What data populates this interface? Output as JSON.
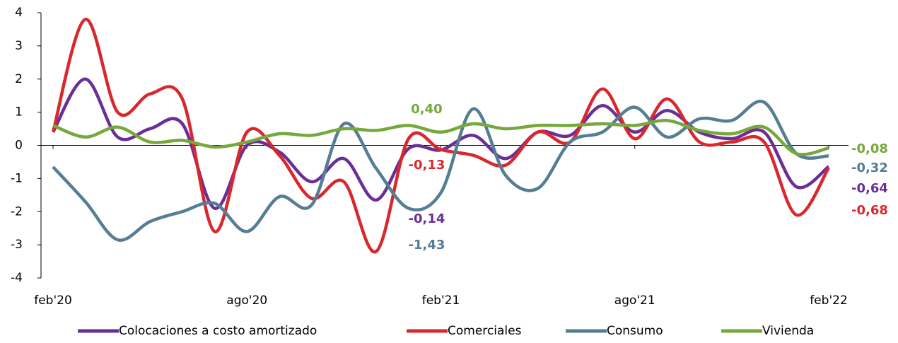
{
  "chart_data": {
    "type": "line",
    "categories": [
      "feb'20",
      null,
      null,
      null,
      null,
      null,
      "ago'20",
      null,
      null,
      null,
      null,
      null,
      "feb'21",
      null,
      null,
      null,
      null,
      null,
      "ago'21",
      null,
      null,
      null,
      null,
      null,
      "feb'22"
    ],
    "series": [
      {
        "name": "Colocaciones a costo amortizado",
        "color": "#6b2e96",
        "values": [
          0.4,
          2.0,
          0.25,
          0.5,
          0.65,
          -1.9,
          0.0,
          -0.2,
          -1.1,
          -0.4,
          -1.65,
          -0.1,
          -0.14,
          0.3,
          -0.4,
          0.4,
          0.3,
          1.2,
          0.4,
          1.05,
          0.4,
          0.2,
          0.4,
          -1.25,
          -0.64
        ],
        "value_labels": [
          null,
          null,
          null,
          null,
          null,
          null,
          null,
          null,
          null,
          null,
          null,
          null,
          "-0,14",
          null,
          null,
          null,
          null,
          null,
          null,
          null,
          null,
          null,
          null,
          null,
          "-0,64"
        ]
      },
      {
        "name": "Comerciales",
        "color": "#d8282e",
        "values": [
          0.4,
          3.8,
          1.0,
          1.55,
          1.4,
          -2.6,
          0.4,
          -0.3,
          -1.6,
          -1.1,
          -3.2,
          0.2,
          -0.13,
          -0.3,
          -0.6,
          0.4,
          0.1,
          1.7,
          0.2,
          1.4,
          0.1,
          0.1,
          0.1,
          -2.1,
          -0.68
        ],
        "value_labels": [
          null,
          null,
          null,
          null,
          null,
          null,
          null,
          null,
          null,
          null,
          null,
          null,
          "-0,13",
          null,
          null,
          null,
          null,
          null,
          null,
          null,
          null,
          null,
          null,
          null,
          "-0,68"
        ]
      },
      {
        "name": "Consumo",
        "color": "#557d93",
        "values": [
          -0.65,
          -1.7,
          -2.85,
          -2.3,
          -2.0,
          -1.75,
          -2.6,
          -1.55,
          -1.8,
          0.65,
          -0.7,
          -1.9,
          -1.43,
          1.1,
          -0.9,
          -1.3,
          0.1,
          0.4,
          1.15,
          0.25,
          0.8,
          0.75,
          1.3,
          -0.25,
          -0.32
        ],
        "value_labels": [
          null,
          null,
          null,
          null,
          null,
          null,
          null,
          null,
          null,
          null,
          null,
          null,
          "-1,43",
          null,
          null,
          null,
          null,
          null,
          null,
          null,
          null,
          null,
          null,
          null,
          "-0,32"
        ]
      },
      {
        "name": "Vivienda",
        "color": "#76a83b",
        "values": [
          0.6,
          0.25,
          0.55,
          0.1,
          0.15,
          -0.05,
          0.1,
          0.35,
          0.3,
          0.5,
          0.45,
          0.6,
          0.4,
          0.65,
          0.5,
          0.6,
          0.6,
          0.65,
          0.6,
          0.75,
          0.45,
          0.35,
          0.55,
          -0.25,
          -0.08
        ],
        "value_labels": [
          null,
          null,
          null,
          null,
          null,
          null,
          null,
          null,
          null,
          null,
          null,
          null,
          "0,40",
          null,
          null,
          null,
          null,
          null,
          null,
          null,
          null,
          null,
          null,
          null,
          "-0,08"
        ]
      }
    ],
    "ylim": [
      -4,
      4
    ],
    "yticks": [
      -4,
      -3,
      -2,
      -1,
      0,
      1,
      2,
      3,
      4
    ]
  }
}
